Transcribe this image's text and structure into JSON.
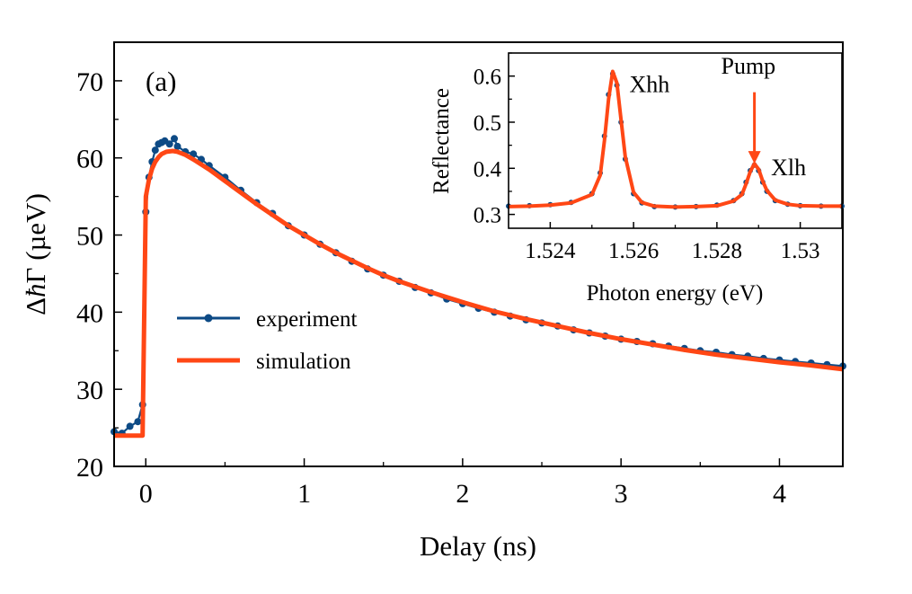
{
  "colors": {
    "experiment": "#0d4a85",
    "simulation": "#ff4715",
    "axis": "#000000"
  },
  "chart_data": [
    {
      "id": "main",
      "type": "line",
      "panel_label": "(a)",
      "xlabel": "Delay (ns)",
      "ylabel_delta": "Δ",
      "ylabel_hbar": "ħ",
      "ylabel_gamma": "Γ",
      "ylabel_unit": " (µeV)",
      "xlim": [
        -0.2,
        4.4
      ],
      "ylim": [
        20,
        75
      ],
      "xticks": [
        0,
        1,
        2,
        3,
        4
      ],
      "xtick_labels": [
        "0",
        "1",
        "2",
        "3",
        "4"
      ],
      "yticks": [
        20,
        30,
        40,
        50,
        60,
        70
      ],
      "ytick_labels": [
        "20",
        "30",
        "40",
        "50",
        "60",
        "70"
      ],
      "legend_position": "center-left",
      "series": [
        {
          "name": "experiment",
          "style": "line-markers",
          "x": [
            -0.2,
            -0.15,
            -0.1,
            -0.05,
            -0.02,
            0.0,
            0.02,
            0.04,
            0.06,
            0.08,
            0.1,
            0.12,
            0.15,
            0.18,
            0.2,
            0.25,
            0.3,
            0.35,
            0.4,
            0.5,
            0.6,
            0.7,
            0.8,
            0.9,
            1.0,
            1.1,
            1.2,
            1.3,
            1.4,
            1.5,
            1.6,
            1.7,
            1.8,
            1.9,
            2.0,
            2.1,
            2.2,
            2.3,
            2.4,
            2.5,
            2.6,
            2.7,
            2.8,
            2.9,
            3.0,
            3.1,
            3.2,
            3.3,
            3.4,
            3.5,
            3.6,
            3.7,
            3.8,
            3.9,
            4.0,
            4.1,
            4.2,
            4.3,
            4.4
          ],
          "y": [
            24.5,
            24.3,
            25.2,
            25.8,
            28.0,
            53.0,
            57.5,
            59.5,
            61.0,
            61.8,
            62.0,
            62.2,
            61.8,
            62.5,
            61.5,
            60.8,
            60.5,
            59.8,
            59.0,
            57.5,
            55.8,
            54.2,
            52.8,
            51.2,
            50.0,
            48.8,
            47.7,
            46.6,
            45.6,
            44.8,
            44.0,
            43.2,
            42.5,
            41.7,
            41.1,
            40.5,
            40.0,
            39.5,
            39.0,
            38.6,
            38.2,
            37.7,
            37.3,
            36.9,
            36.5,
            36.2,
            35.9,
            35.6,
            35.3,
            35.0,
            34.8,
            34.5,
            34.3,
            34.0,
            33.8,
            33.6,
            33.4,
            33.2,
            33.0
          ]
        },
        {
          "name": "simulation",
          "style": "line",
          "x": [
            -0.2,
            -0.1,
            -0.02,
            0.0,
            0.02,
            0.04,
            0.06,
            0.08,
            0.1,
            0.13,
            0.17,
            0.2,
            0.25,
            0.3,
            0.4,
            0.5,
            0.6,
            0.7,
            0.8,
            0.9,
            1.0,
            1.1,
            1.2,
            1.3,
            1.4,
            1.5,
            1.6,
            1.8,
            2.0,
            2.2,
            2.4,
            2.6,
            2.8,
            3.0,
            3.2,
            3.4,
            3.6,
            3.8,
            4.0,
            4.2,
            4.4
          ],
          "y": [
            24.0,
            24.0,
            24.0,
            55.0,
            57.2,
            58.6,
            59.5,
            60.1,
            60.5,
            60.8,
            60.9,
            60.8,
            60.4,
            59.8,
            58.5,
            57.0,
            55.5,
            54.0,
            52.6,
            51.2,
            50.0,
            48.8,
            47.7,
            46.7,
            45.7,
            44.8,
            44.0,
            42.6,
            41.3,
            40.1,
            39.1,
            38.2,
            37.3,
            36.5,
            35.8,
            35.1,
            34.5,
            34.0,
            33.5,
            33.1,
            32.6
          ]
        }
      ]
    },
    {
      "id": "inset",
      "type": "line",
      "xlabel": "Photon energy (eV)",
      "ylabel": "Reflectance",
      "xlim": [
        1.523,
        1.531
      ],
      "ylim": [
        0.27,
        0.65
      ],
      "xticks": [
        1.524,
        1.526,
        1.528,
        1.53
      ],
      "xtick_labels": [
        "1.524",
        "1.526",
        "1.528",
        "1.53"
      ],
      "yticks": [
        0.3,
        0.4,
        0.5,
        0.6
      ],
      "ytick_labels": [
        "0.3",
        "0.4",
        "0.5",
        "0.6"
      ],
      "annotations": [
        {
          "text": "Xhh",
          "x": 1.5259,
          "y": 0.565
        },
        {
          "text": "Pump",
          "x": 1.5281,
          "y": 0.605
        },
        {
          "text": "Xlh",
          "x": 1.5293,
          "y": 0.385
        }
      ],
      "arrow": {
        "label": "Pump",
        "x": 1.5289,
        "y_start": 0.565,
        "y_end": 0.41
      },
      "series": [
        {
          "name": "experiment",
          "style": "line-markers",
          "x": [
            1.523,
            1.5235,
            1.524,
            1.5245,
            1.525,
            1.5252,
            1.5253,
            1.5254,
            1.5255,
            1.5256,
            1.5257,
            1.5258,
            1.526,
            1.5262,
            1.5265,
            1.527,
            1.5275,
            1.528,
            1.5284,
            1.5286,
            1.5287,
            1.5288,
            1.5289,
            1.529,
            1.5291,
            1.5292,
            1.5294,
            1.5297,
            1.53,
            1.5305,
            1.531
          ],
          "y": [
            0.318,
            0.319,
            0.321,
            0.326,
            0.345,
            0.39,
            0.47,
            0.56,
            0.605,
            0.58,
            0.5,
            0.42,
            0.345,
            0.325,
            0.317,
            0.316,
            0.317,
            0.32,
            0.33,
            0.345,
            0.37,
            0.395,
            0.407,
            0.395,
            0.37,
            0.35,
            0.33,
            0.322,
            0.319,
            0.318,
            0.318
          ]
        },
        {
          "name": "simulation",
          "style": "line",
          "x": [
            1.523,
            1.5235,
            1.524,
            1.5245,
            1.525,
            1.5252,
            1.5253,
            1.5254,
            1.5255,
            1.5256,
            1.5257,
            1.5258,
            1.526,
            1.5262,
            1.5265,
            1.527,
            1.5275,
            1.528,
            1.5284,
            1.5286,
            1.5287,
            1.5288,
            1.5289,
            1.529,
            1.5291,
            1.5292,
            1.5294,
            1.5297,
            1.53,
            1.5305,
            1.531
          ],
          "y": [
            0.317,
            0.318,
            0.32,
            0.325,
            0.343,
            0.385,
            0.46,
            0.55,
            0.61,
            0.585,
            0.505,
            0.425,
            0.348,
            0.326,
            0.318,
            0.316,
            0.317,
            0.319,
            0.329,
            0.343,
            0.366,
            0.393,
            0.41,
            0.398,
            0.372,
            0.352,
            0.331,
            0.322,
            0.319,
            0.318,
            0.318
          ]
        }
      ]
    }
  ]
}
